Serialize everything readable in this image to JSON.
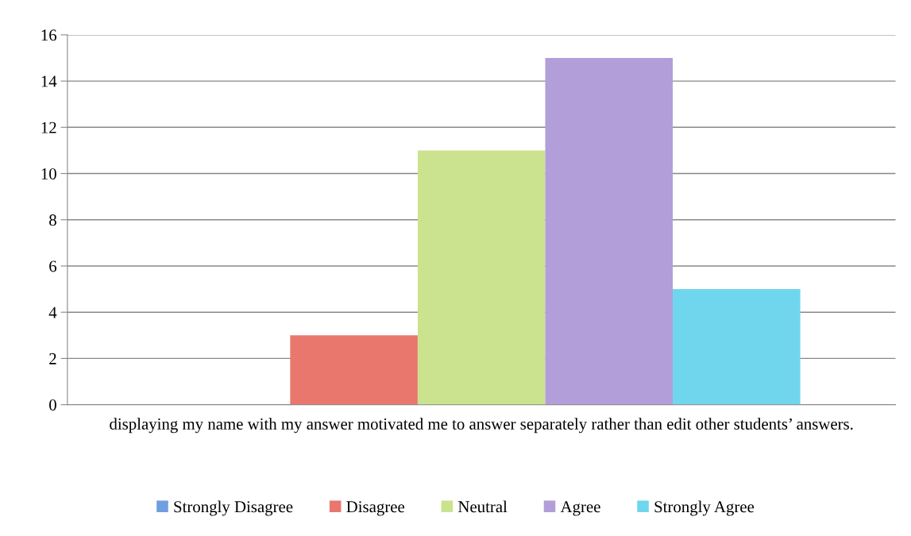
{
  "chart_data": {
    "type": "bar",
    "categories": [
      "displaying my name with my answer motivated me to answer separately rather than edit other students’ answers."
    ],
    "series": [
      {
        "name": "Strongly Disagree",
        "color": "#6f9fde",
        "values": [
          0
        ]
      },
      {
        "name": "Disagree",
        "color": "#e9776d",
        "values": [
          3
        ]
      },
      {
        "name": "Neutral",
        "color": "#cbe38e",
        "values": [
          11
        ]
      },
      {
        "name": "Agree",
        "color": "#b29ed8",
        "values": [
          15
        ]
      },
      {
        "name": "Strongly Agree",
        "color": "#70d6ed",
        "values": [
          5
        ]
      }
    ],
    "ylim": [
      0,
      16
    ],
    "yticks": [
      0,
      2,
      4,
      6,
      8,
      10,
      12,
      14,
      16
    ],
    "grid": "y",
    "legend": "bottom"
  }
}
